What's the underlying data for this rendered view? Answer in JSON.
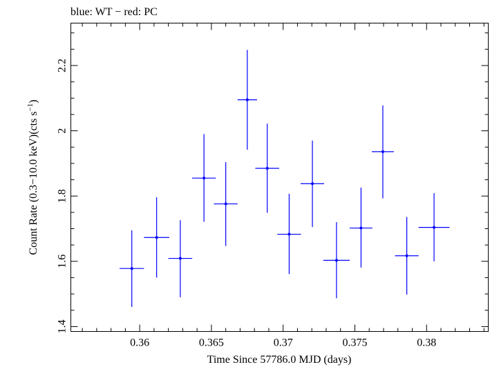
{
  "chart_data": {
    "type": "scatter",
    "title": "blue: WT − red: PC",
    "xlabel": "Time Since 57786.0 MJD (days)",
    "ylabel": "Count Rate (0.3−10.0 keV)(cts s",
    "ylabel_sup": "−1",
    "ylabel_close": ")",
    "xlim": [
      0.3552,
      0.3843
    ],
    "ylim": [
      1.385,
      2.33
    ],
    "xticks": [
      0.36,
      0.365,
      0.37,
      0.375,
      0.38
    ],
    "xtick_labels": [
      "0.36",
      "0.365",
      "0.37",
      "0.375",
      "0.38"
    ],
    "yticks": [
      1.4,
      1.6,
      1.8,
      2.0,
      2.2
    ],
    "ytick_labels": [
      "1.4",
      "1.6",
      "1.8",
      "2",
      "2.2"
    ],
    "series": [
      {
        "color": "#0000ff",
        "points": [
          {
            "x": 0.35945,
            "y": 1.578,
            "xerr": 0.00085,
            "yerr_low": 0.118,
            "yerr_high": 0.117
          },
          {
            "x": 0.36118,
            "y": 1.673,
            "xerr": 0.00088,
            "yerr_low": 0.123,
            "yerr_high": 0.123
          },
          {
            "x": 0.36283,
            "y": 1.609,
            "xerr": 0.00083,
            "yerr_low": 0.119,
            "yerr_high": 0.117
          },
          {
            "x": 0.36448,
            "y": 1.855,
            "xerr": 0.00083,
            "yerr_low": 0.134,
            "yerr_high": 0.135
          },
          {
            "x": 0.366,
            "y": 1.776,
            "xerr": 0.00083,
            "yerr_low": 0.129,
            "yerr_high": 0.128
          },
          {
            "x": 0.3675,
            "y": 2.095,
            "xerr": 0.00068,
            "yerr_low": 0.153,
            "yerr_high": 0.153
          },
          {
            "x": 0.36889,
            "y": 1.885,
            "xerr": 0.00083,
            "yerr_low": 0.136,
            "yerr_high": 0.137
          },
          {
            "x": 0.37042,
            "y": 1.683,
            "xerr": 0.00083,
            "yerr_low": 0.122,
            "yerr_high": 0.124
          },
          {
            "x": 0.37204,
            "y": 1.838,
            "xerr": 0.00082,
            "yerr_low": 0.133,
            "yerr_high": 0.132
          },
          {
            "x": 0.37372,
            "y": 1.603,
            "xerr": 0.00092,
            "yerr_low": 0.116,
            "yerr_high": 0.117
          },
          {
            "x": 0.37543,
            "y": 1.702,
            "xerr": 0.00079,
            "yerr_low": 0.121,
            "yerr_high": 0.124
          },
          {
            "x": 0.37695,
            "y": 1.936,
            "xerr": 0.00077,
            "yerr_low": 0.143,
            "yerr_high": 0.142
          },
          {
            "x": 0.37862,
            "y": 1.617,
            "xerr": 0.00082,
            "yerr_low": 0.119,
            "yerr_high": 0.119
          },
          {
            "x": 0.38052,
            "y": 1.704,
            "xerr": 0.00108,
            "yerr_low": 0.104,
            "yerr_high": 0.105
          }
        ]
      }
    ]
  }
}
